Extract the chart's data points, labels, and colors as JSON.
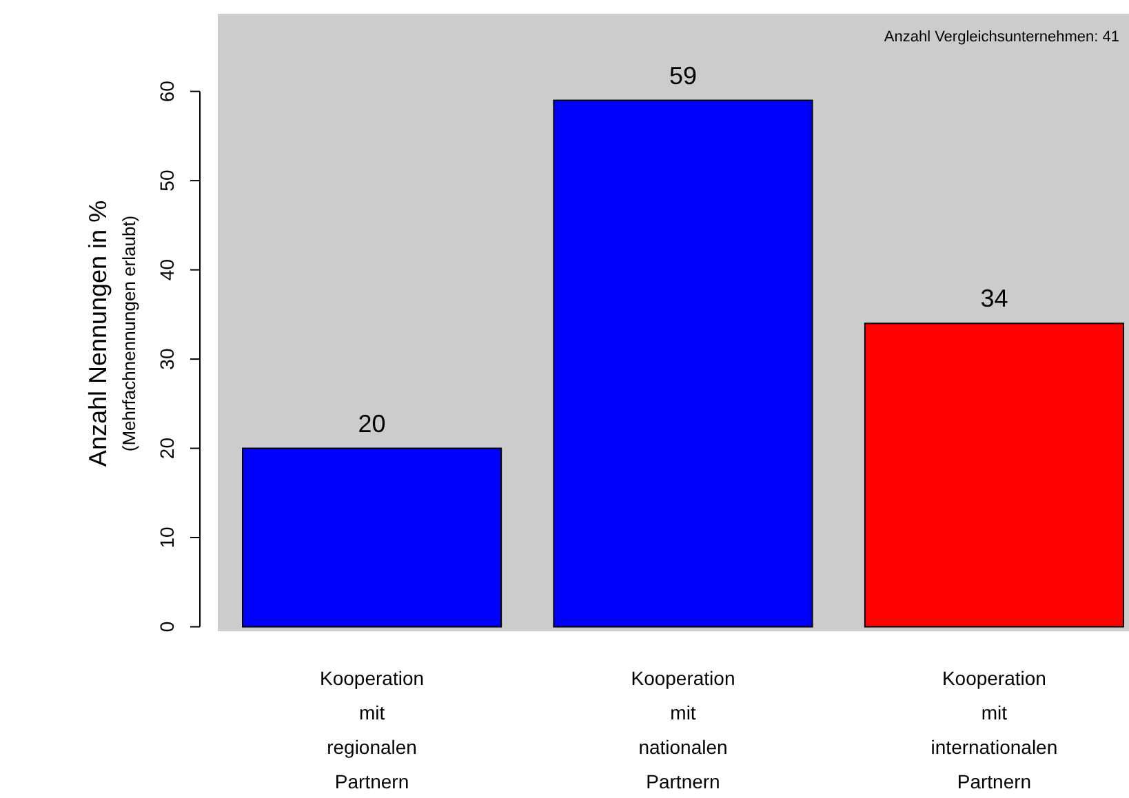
{
  "chart_data": {
    "type": "bar",
    "ylabel": "Anzahl Nennungen in %\n(Mehrfachnennungen erlaubt)",
    "categories": [
      "Kooperation mit regionalen Partnern",
      "Kooperation mit nationalen Partnern",
      "Kooperation mit internationalen Partnern"
    ],
    "values": [
      20,
      59,
      34
    ],
    "colors": [
      "#0000ff",
      "#0000ff",
      "#ff0000"
    ],
    "ylim": [
      -0.5,
      68.7
    ],
    "yticks": [
      0,
      10,
      20,
      30,
      40,
      50,
      60
    ],
    "data_labels": true,
    "grid": false,
    "annotations": [
      "Anzahl Vergleichsunternehmen: 41"
    ]
  }
}
